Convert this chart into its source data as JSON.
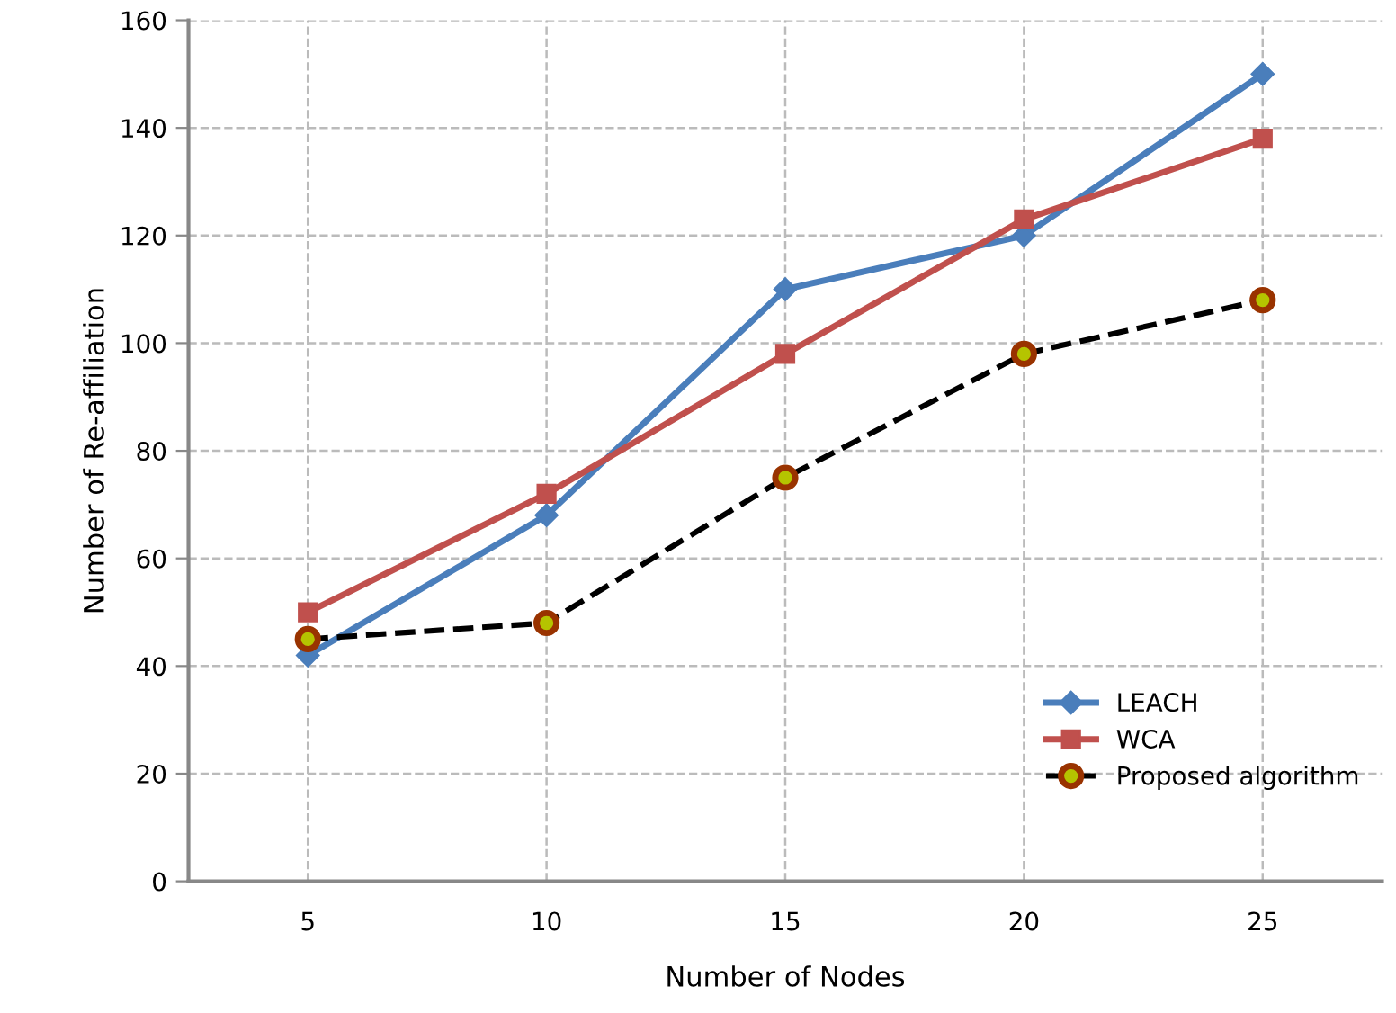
{
  "chart_data": {
    "type": "line",
    "xlabel": "Number of Nodes",
    "ylabel": "Number of Re-affiliation",
    "categories": [
      "5",
      "10",
      "15",
      "20",
      "25"
    ],
    "series": [
      {
        "name": "LEACH",
        "color": "#4a7ebb",
        "marker": "diamond",
        "line_style": "solid",
        "values": [
          42,
          68,
          110,
          120,
          150
        ]
      },
      {
        "name": "WCA",
        "color": "#c0504d",
        "marker": "square",
        "line_style": "solid",
        "values": [
          50,
          72,
          98,
          123,
          138
        ]
      },
      {
        "name": "Proposed algorithm",
        "color": "#000000",
        "marker": "circle",
        "line_style": "dashed",
        "values": [
          45,
          48,
          75,
          98,
          108
        ]
      }
    ],
    "ylim": [
      0,
      160
    ],
    "yticks": [
      0,
      20,
      40,
      60,
      80,
      100,
      120,
      140,
      160
    ],
    "grid": true,
    "legend": "bottom right"
  }
}
